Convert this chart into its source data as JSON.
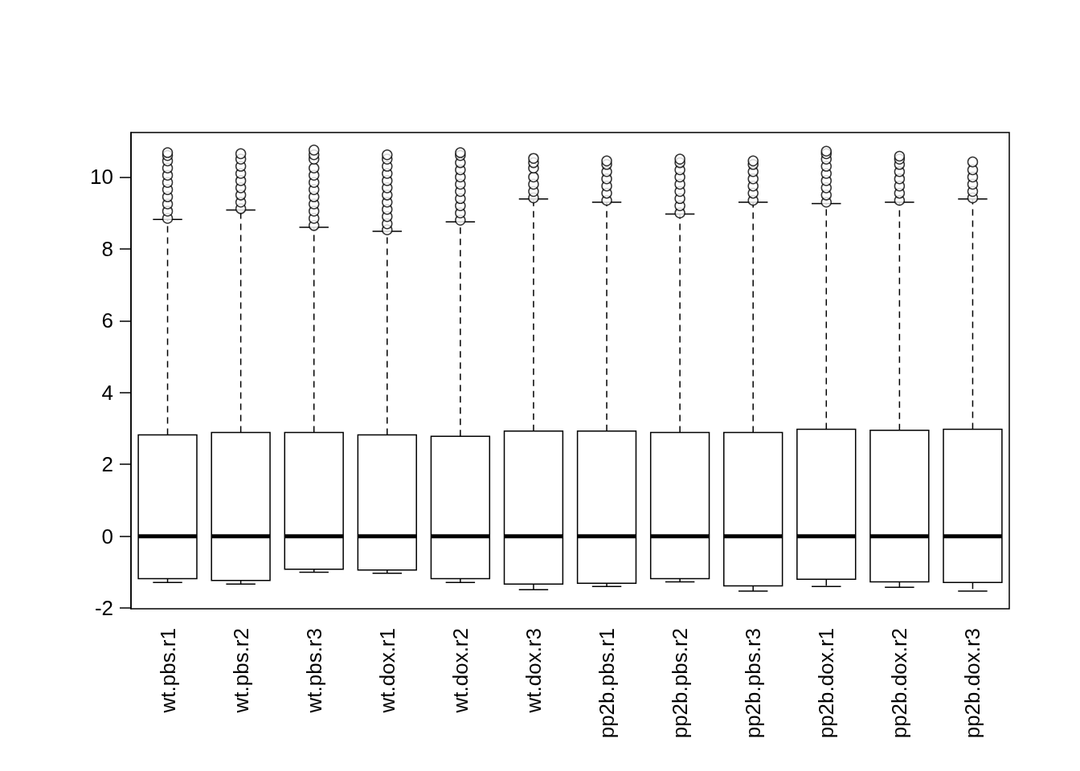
{
  "chart_data": {
    "type": "box",
    "categories": [
      "wt.pbs.r1",
      "wt.pbs.r2",
      "wt.pbs.r3",
      "wt.dox.r1",
      "wt.dox.r2",
      "wt.dox.r3",
      "pp2b.pbs.r1",
      "pp2b.pbs.r2",
      "pp2b.pbs.r3",
      "pp2b.dox.r1",
      "pp2b.dox.r2",
      "pp2b.dox.r3"
    ],
    "color": "#000000",
    "ylim": [
      -2.02,
      11.24
    ],
    "yticks": [
      -2,
      0,
      2,
      4,
      6,
      8,
      10
    ],
    "grid": false,
    "line_style": "dashed",
    "marker": "circle",
    "boxes": [
      {
        "low": -1.29,
        "q1": -1.18,
        "median": 0,
        "q3": 2.82,
        "high": 8.82,
        "outliers": [
          8.85,
          9.05,
          9.25,
          9.45,
          9.65,
          9.85,
          10.05,
          10.25,
          10.45,
          10.6,
          10.68
        ]
      },
      {
        "low": -1.33,
        "q1": -1.23,
        "median": 0,
        "q3": 2.89,
        "high": 9.08,
        "outliers": [
          9.12,
          9.3,
          9.5,
          9.7,
          9.9,
          10.1,
          10.3,
          10.5,
          10.65
        ]
      },
      {
        "low": -1.0,
        "q1": -0.92,
        "median": 0,
        "q3": 2.89,
        "high": 8.6,
        "outliers": [
          8.65,
          8.85,
          9.05,
          9.25,
          9.45,
          9.65,
          9.85,
          10.05,
          10.25,
          10.5,
          10.62,
          10.75
        ]
      },
      {
        "low": -1.03,
        "q1": -0.94,
        "median": 0,
        "q3": 2.82,
        "high": 8.49,
        "outliers": [
          8.53,
          8.7,
          8.9,
          9.1,
          9.3,
          9.5,
          9.7,
          9.9,
          10.1,
          10.3,
          10.5,
          10.62
        ]
      },
      {
        "low": -1.29,
        "q1": -1.18,
        "median": 0,
        "q3": 2.78,
        "high": 8.75,
        "outliers": [
          8.8,
          9.0,
          9.2,
          9.4,
          9.6,
          9.8,
          10.0,
          10.2,
          10.4,
          10.6,
          10.68
        ]
      },
      {
        "low": -1.49,
        "q1": -1.33,
        "median": 0,
        "q3": 2.93,
        "high": 9.39,
        "outliers": [
          9.42,
          9.6,
          9.8,
          10.0,
          10.25,
          10.4,
          10.52
        ]
      },
      {
        "low": -1.4,
        "q1": -1.31,
        "median": 0,
        "q3": 2.93,
        "high": 9.3,
        "outliers": [
          9.35,
          9.55,
          9.75,
          9.95,
          10.15,
          10.35,
          10.45
        ]
      },
      {
        "low": -1.27,
        "q1": -1.18,
        "median": 0,
        "q3": 2.89,
        "high": 8.97,
        "outliers": [
          9.0,
          9.2,
          9.4,
          9.6,
          9.8,
          10.0,
          10.2,
          10.4,
          10.5
        ]
      },
      {
        "low": -1.53,
        "q1": -1.38,
        "median": 0,
        "q3": 2.89,
        "high": 9.3,
        "outliers": [
          9.35,
          9.55,
          9.75,
          9.95,
          10.15,
          10.35,
          10.45
        ]
      },
      {
        "low": -1.4,
        "q1": -1.2,
        "median": 0,
        "q3": 2.98,
        "high": 9.26,
        "outliers": [
          9.3,
          9.5,
          9.7,
          9.9,
          10.1,
          10.3,
          10.5,
          10.65,
          10.72
        ]
      },
      {
        "low": -1.42,
        "q1": -1.27,
        "median": 0,
        "q3": 2.95,
        "high": 9.3,
        "outliers": [
          9.35,
          9.55,
          9.75,
          9.95,
          10.15,
          10.35,
          10.5,
          10.58
        ]
      },
      {
        "low": -1.53,
        "q1": -1.29,
        "median": 0,
        "q3": 2.98,
        "high": 9.39,
        "outliers": [
          9.42,
          9.6,
          9.8,
          10.0,
          10.2,
          10.42
        ]
      }
    ]
  }
}
